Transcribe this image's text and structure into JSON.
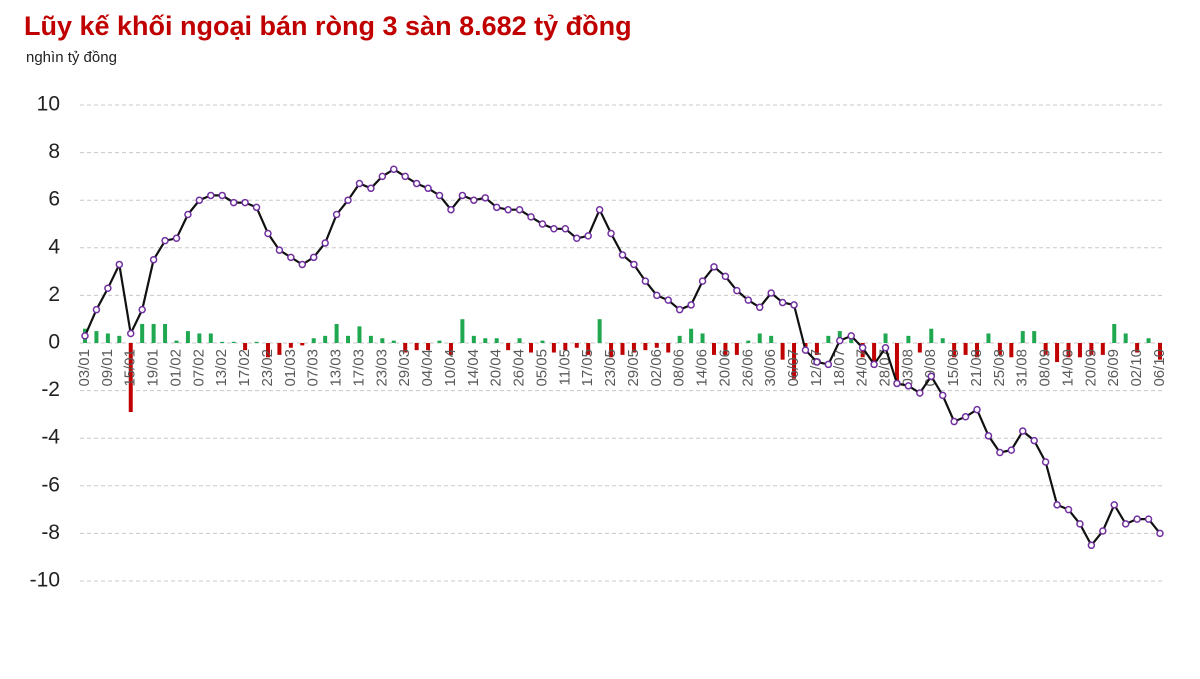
{
  "chart_data": {
    "type": "bar-line",
    "title": "Lũy kế khối ngoại bán ròng 3 sàn 8.682 tỷ đồng",
    "subtitle": "nghìn tỷ đồng",
    "categories": [
      "03/01",
      null,
      "09/01",
      null,
      "15/01",
      null,
      "19/01",
      null,
      "01/02",
      null,
      "07/02",
      null,
      "13/02",
      null,
      "17/02",
      null,
      "23/02",
      null,
      "01/03",
      null,
      "07/03",
      null,
      "13/03",
      null,
      "17/03",
      null,
      "23/03",
      null,
      "29/03",
      null,
      "04/04",
      null,
      "10/04",
      null,
      "14/04",
      null,
      "20/04",
      null,
      "26/04",
      null,
      "05/05",
      null,
      "11/05",
      null,
      "17/05",
      null,
      "23/05",
      null,
      "29/05",
      null,
      "02/06",
      null,
      "08/06",
      null,
      "14/06",
      null,
      "20/06",
      null,
      "26/06",
      null,
      "30/06",
      null,
      "06/07",
      null,
      "12/07",
      null,
      "18/07",
      null,
      "24/07",
      null,
      "28/07",
      null,
      "03/08",
      null,
      "09/08",
      null,
      "15/08",
      null,
      "21/08",
      null,
      "25/08",
      null,
      "31/08",
      null,
      "08/09",
      null,
      "14/09",
      null,
      "20/09",
      null,
      "26/09",
      null,
      "02/10",
      null,
      "06/10"
    ],
    "bars": {
      "positive_color": "#1fa84f",
      "negative_color": "#c00000",
      "values": [
        0.6,
        0.5,
        0.4,
        0.3,
        -2.9,
        0.8,
        0.8,
        0.8,
        0.1,
        0.5,
        0.4,
        0.4,
        0.05,
        0.05,
        -0.3,
        0.05,
        -0.6,
        -0.5,
        -0.2,
        -0.1,
        0.2,
        0.3,
        0.8,
        0.3,
        0.7,
        0.3,
        0.2,
        0.1,
        -0.4,
        -0.3,
        -0.3,
        0.1,
        -0.5,
        1.0,
        0.3,
        0.2,
        0.2,
        -0.3,
        0.2,
        -0.4,
        0.1,
        -0.4,
        -0.3,
        -0.2,
        -0.5,
        1.0,
        -0.6,
        -0.5,
        -0.4,
        -0.3,
        -0.2,
        -0.4,
        0.3,
        0.6,
        0.4,
        -0.5,
        -0.5,
        -0.5,
        0.1,
        0.4,
        0.3,
        -0.7,
        -1.5,
        -0.3,
        -0.5,
        0.3,
        0.5,
        0.3,
        -0.6,
        -0.8,
        0.4,
        -1.8,
        0.3,
        -0.4,
        0.6,
        0.2,
        -0.6,
        -0.5,
        -0.6,
        0.4,
        -0.5,
        -0.6,
        0.5,
        0.5,
        -0.5,
        -0.8,
        -0.6,
        -0.6,
        -0.5,
        -0.5,
        0.8,
        0.4,
        -0.4,
        0.2,
        -0.7
      ]
    },
    "line": {
      "color": "#111111",
      "marker_color": "#7030a0",
      "values": [
        0.3,
        1.4,
        2.3,
        3.3,
        0.4,
        1.4,
        3.5,
        4.3,
        4.4,
        5.4,
        6.0,
        6.2,
        6.2,
        5.9,
        5.9,
        5.7,
        4.6,
        3.9,
        3.6,
        3.3,
        3.6,
        4.2,
        5.4,
        6.0,
        6.7,
        6.5,
        7.0,
        7.3,
        7.0,
        6.7,
        6.5,
        6.2,
        5.6,
        6.2,
        6.0,
        6.1,
        5.7,
        5.6,
        5.6,
        5.3,
        5.0,
        4.8,
        4.8,
        4.4,
        4.5,
        5.6,
        4.6,
        3.7,
        3.3,
        2.6,
        2.0,
        1.8,
        1.4,
        1.6,
        2.6,
        3.2,
        2.8,
        2.2,
        1.8,
        1.5,
        2.1,
        1.7,
        1.6,
        -0.3,
        -0.8,
        -0.9,
        0.1,
        0.3,
        -0.2,
        -0.9,
        -0.2,
        -1.7,
        -1.8,
        -2.1,
        -1.4,
        -2.2,
        -3.3,
        -3.1,
        -2.8,
        -3.9,
        -4.6,
        -4.5,
        -3.7,
        -4.1,
        -5.0,
        -6.8,
        -7.0,
        -7.6,
        -8.5,
        -7.9,
        -6.8,
        -7.6,
        -7.4,
        -7.4,
        -8.0
      ]
    },
    "ylim": [
      -10,
      10
    ],
    "yticks": [
      -10,
      -8,
      -6,
      -4,
      -2,
      0,
      2,
      4,
      6,
      8,
      10
    ],
    "grid": true
  }
}
